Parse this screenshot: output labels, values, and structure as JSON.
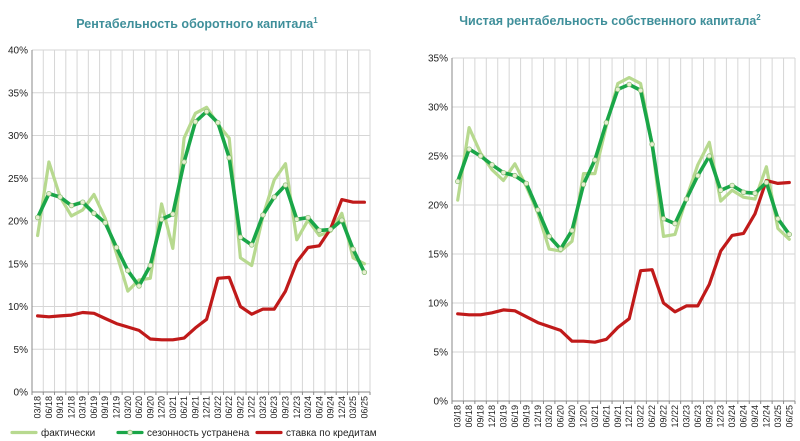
{
  "colors": {
    "actual": "#b7d98f",
    "adjusted": "#1aa648",
    "adjusted_marker_fill": "#e7f0d2",
    "rate": "#c01a1a",
    "title": "#3f8f9a"
  },
  "legend": {
    "actual_label": "фактически",
    "adjusted_label": "сезонность устранена",
    "rate_label": "ставка по кредитам"
  },
  "chart_data": [
    {
      "type": "line",
      "title": "Рентабельность оборотного капитала",
      "title_superscript": "1",
      "ylim": [
        0,
        40
      ],
      "yticks": [
        0,
        5,
        10,
        15,
        20,
        25,
        30,
        35,
        40
      ],
      "ytick_labels": [
        "0%",
        "5%",
        "10%",
        "15%",
        "20%",
        "25%",
        "30%",
        "35%",
        "40%"
      ],
      "grid": true,
      "x": [
        "03/18",
        "06/18",
        "09/18",
        "12/18",
        "03/19",
        "06/19",
        "09/19",
        "12/19",
        "03/20",
        "06/20",
        "09/20",
        "12/20",
        "03/21",
        "06/21",
        "09/21",
        "12/21",
        "03/22",
        "06/22",
        "09/22",
        "12/22",
        "03/23",
        "06/23",
        "09/23",
        "12/23",
        "03/24",
        "06/24",
        "09/24",
        "12/24",
        "03/25",
        "06/25"
      ],
      "series": [
        {
          "name": "фактически",
          "values": [
            18.3,
            26.9,
            22.8,
            20.6,
            21.3,
            23.1,
            20.3,
            16.2,
            11.8,
            13.1,
            13.3,
            22.0,
            16.8,
            29.7,
            32.6,
            33.3,
            31.3,
            29.7,
            15.7,
            14.8,
            20.6,
            24.8,
            26.7,
            17.8,
            20.1,
            18.3,
            18.8,
            20.9,
            15.7,
            15.0
          ]
        },
        {
          "name": "сезонность устранена",
          "values": [
            20.4,
            23.2,
            22.8,
            21.8,
            22.2,
            20.9,
            19.8,
            16.9,
            14.2,
            12.4,
            14.8,
            20.2,
            20.8,
            26.9,
            31.6,
            32.8,
            31.5,
            27.4,
            18.1,
            17.2,
            20.7,
            22.8,
            24.2,
            20.2,
            20.4,
            18.9,
            19.0,
            20.1,
            16.7,
            14.0
          ]
        },
        {
          "name": "ставка по кредитам",
          "values": [
            8.9,
            8.8,
            8.9,
            9.0,
            9.3,
            9.2,
            8.6,
            8.0,
            7.6,
            7.2,
            6.2,
            6.1,
            6.1,
            6.3,
            7.5,
            8.5,
            13.3,
            13.4,
            10.0,
            9.1,
            9.7,
            9.7,
            11.8,
            15.2,
            16.9,
            17.1,
            19.1,
            22.5,
            22.2,
            22.2
          ]
        }
      ]
    },
    {
      "type": "line",
      "title": "Чистая рентабельность собственного капитала",
      "title_superscript": "2",
      "ylim": [
        0,
        35
      ],
      "yticks": [
        0,
        5,
        10,
        15,
        20,
        25,
        30,
        35
      ],
      "ytick_labels": [
        "0%",
        "5%",
        "10%",
        "15%",
        "20%",
        "25%",
        "30%",
        "35%"
      ],
      "grid": true,
      "x": [
        "03/18",
        "06/18",
        "09/18",
        "12/18",
        "03/19",
        "06/19",
        "09/19",
        "12/19",
        "03/20",
        "06/20",
        "09/20",
        "12/20",
        "03/21",
        "06/21",
        "09/21",
        "12/21",
        "03/22",
        "06/22",
        "09/22",
        "12/22",
        "03/23",
        "06/23",
        "09/23",
        "12/23",
        "03/24",
        "06/24",
        "09/24",
        "12/24",
        "03/25",
        "06/25"
      ],
      "series": [
        {
          "name": "фактически",
          "values": [
            20.5,
            27.9,
            25.3,
            23.6,
            22.5,
            24.2,
            21.9,
            19.2,
            15.5,
            15.3,
            16.3,
            23.2,
            23.2,
            28.1,
            32.4,
            33.0,
            32.4,
            26.2,
            16.8,
            17.0,
            20.7,
            24.1,
            26.4,
            20.4,
            21.5,
            20.8,
            20.6,
            23.9,
            17.6,
            16.5
          ]
        },
        {
          "name": "сезонность устранена",
          "values": [
            22.4,
            25.7,
            25.0,
            24.1,
            23.3,
            23.0,
            22.2,
            19.5,
            16.8,
            15.5,
            17.4,
            22.1,
            24.6,
            28.4,
            31.8,
            32.3,
            31.7,
            26.2,
            18.6,
            18.1,
            20.6,
            23.0,
            25.0,
            21.5,
            22.0,
            21.3,
            21.2,
            22.3,
            18.6,
            17.0
          ]
        },
        {
          "name": "ставка по кредитам",
          "values": [
            8.9,
            8.8,
            8.8,
            9.0,
            9.3,
            9.2,
            8.6,
            8.0,
            7.6,
            7.2,
            6.1,
            6.1,
            6.0,
            6.3,
            7.5,
            8.4,
            13.3,
            13.4,
            10.0,
            9.1,
            9.7,
            9.7,
            11.9,
            15.3,
            16.9,
            17.1,
            19.1,
            22.5,
            22.2,
            22.3
          ]
        }
      ]
    }
  ]
}
